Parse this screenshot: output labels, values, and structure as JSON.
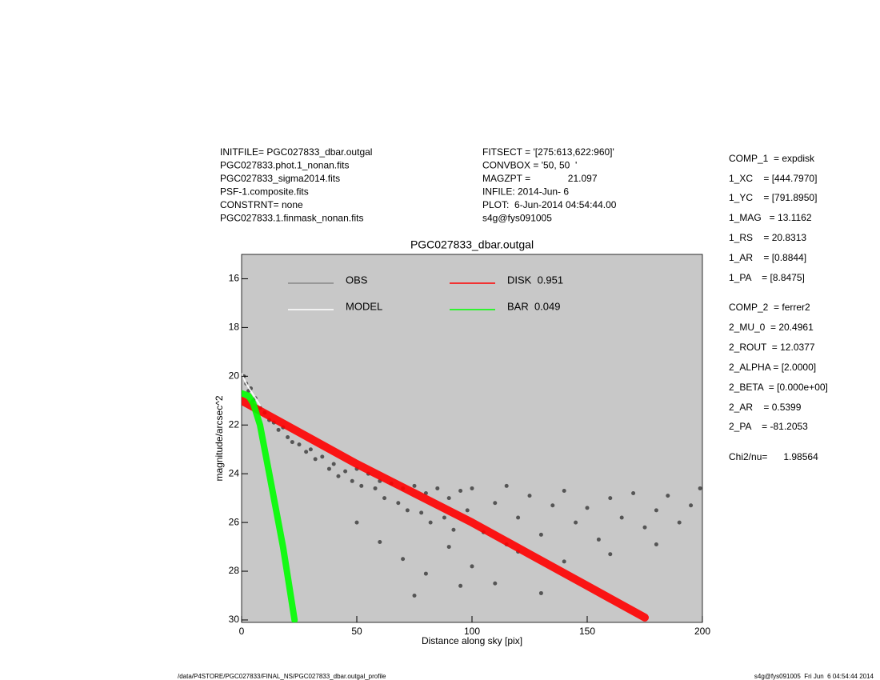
{
  "header": {
    "left": [
      "INITFILE= PGC027833_dbar.outgal",
      "PGC027833.phot.1_nonan.fits",
      "PGC027833_sigma2014.fits",
      "PSF-1.composite.fits",
      "CONSTRNT= none",
      "PGC027833.1.finmask_nonan.fits"
    ],
    "middle": [
      "FITSECT = '[275:613,622:960]'",
      "CONVBOX = '50, 50  '",
      "MAGZPT =              21.097",
      "INFILE: 2014-Jun- 6",
      "PLOT:  6-Jun-2014 04:54:44.00",
      "s4g@fys091005"
    ],
    "parameters": [
      "COMP_1  = expdisk",
      "1_XC    = [444.7970]",
      "1_YC    = [791.8950]",
      "1_MAG   = 13.1162",
      "1_RS    = 20.8313",
      "1_AR    = [0.8844]",
      "1_PA    = [8.8475]",
      "COMP_2  = ferrer2",
      "2_MU_0  = 20.4961",
      "2_ROUT  = 12.0377",
      "2_ALPHA = [2.0000]",
      "2_BETA  = [0.000e+00]",
      "2_AR    = 0.5399",
      "2_PA    = -81.2053",
      "Chi2/nu=      1.98564"
    ],
    "footer_left": "/data/P4STORE/PGC027833/FINAL_NS/PGC027833_dbar.outgal_profile",
    "footer_right": "s4g@fys091005  Fri Jun  6 04:54:44 2014"
  },
  "chart_data": {
    "type": "scatter",
    "title": "PGC027833_dbar.outgal",
    "x_label": "Distance along sky [pix]",
    "y_label": "magnitude/arcsec^2",
    "xlim": [
      0,
      200
    ],
    "ylim": [
      15,
      30.1
    ],
    "y_inverted": true,
    "xticks": [
      0,
      50,
      100,
      150,
      200
    ],
    "yticks": [
      16,
      18,
      20,
      22,
      24,
      26,
      28,
      30
    ],
    "background": "#c8c8c8",
    "series": [
      {
        "name": "OBS",
        "color": "#555555",
        "mode": "markers",
        "x": [
          1,
          2,
          3,
          4,
          5,
          6,
          8,
          10,
          12,
          14,
          16,
          18,
          20,
          22,
          25,
          28,
          30,
          32,
          35,
          38,
          40,
          42,
          45,
          48,
          50,
          52,
          55,
          58,
          60,
          62,
          65,
          68,
          70,
          72,
          75,
          78,
          80,
          82,
          85,
          88,
          90,
          92,
          95,
          98,
          100,
          105,
          110,
          115,
          120,
          125,
          130,
          135,
          140,
          145,
          150,
          155,
          160,
          165,
          170,
          175,
          180,
          185,
          190,
          195,
          199,
          60,
          70,
          80,
          90,
          100,
          110,
          120,
          130,
          140,
          160,
          180,
          50,
          75,
          95,
          115
        ],
        "values": [
          20.0,
          20.3,
          20.6,
          20.5,
          21.0,
          20.9,
          21.3,
          21.5,
          21.8,
          21.9,
          22.2,
          22.1,
          22.5,
          22.7,
          22.8,
          23.1,
          23.0,
          23.4,
          23.3,
          23.8,
          23.6,
          24.1,
          23.9,
          24.3,
          23.8,
          24.5,
          24.0,
          24.6,
          24.3,
          25.0,
          24.4,
          25.2,
          24.6,
          25.5,
          24.5,
          25.6,
          24.8,
          26.0,
          24.6,
          25.8,
          25.0,
          26.3,
          24.7,
          25.5,
          24.6,
          26.4,
          25.2,
          24.5,
          25.8,
          24.9,
          26.5,
          25.3,
          24.7,
          26.0,
          25.4,
          26.7,
          25.0,
          25.8,
          24.8,
          26.2,
          25.5,
          24.9,
          26.0,
          25.3,
          24.6,
          26.8,
          27.5,
          28.1,
          27.0,
          27.8,
          28.5,
          27.2,
          28.9,
          27.6,
          27.3,
          26.9,
          26.0,
          29.0,
          28.6,
          26.9
        ]
      },
      {
        "name": "MODEL",
        "color": "#ffffff",
        "mode": "lines",
        "x": [
          0,
          2,
          4,
          6,
          8
        ],
        "values": [
          19.9,
          20.3,
          20.6,
          20.9,
          21.2
        ]
      },
      {
        "name": "DISK  0.951",
        "color": "#ff0000",
        "mode": "lines",
        "x": [
          0,
          25,
          50,
          75,
          100,
          125,
          150,
          175
        ],
        "values": [
          21.0,
          22.3,
          23.6,
          24.8,
          26.0,
          27.3,
          28.6,
          29.9
        ]
      },
      {
        "name": "BAR  0.049",
        "color": "#00ff00",
        "mode": "lines",
        "x": [
          0,
          3,
          5,
          8,
          10,
          12,
          15,
          18,
          20,
          23
        ],
        "values": [
          20.7,
          20.8,
          21.1,
          22.0,
          23.0,
          24.0,
          25.5,
          27.0,
          28.2,
          30.0
        ]
      }
    ]
  }
}
